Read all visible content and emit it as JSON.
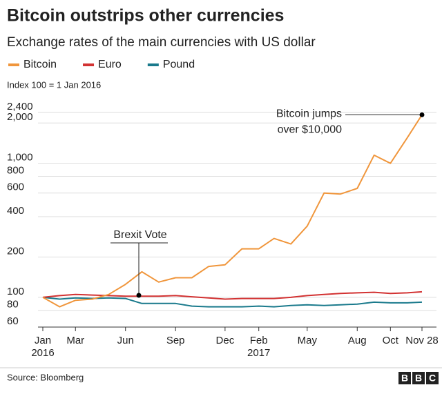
{
  "chart_data": {
    "type": "line",
    "title": "Bitcoin outstrips other currencies",
    "subtitle": "Exchange rates of the main currencies with US dollar",
    "y_label": "Index 100 = 1 Jan 2016",
    "source": "Source: Bloomberg",
    "logo": [
      "B",
      "B",
      "C"
    ],
    "log_scale": true,
    "grid": true,
    "x": [
      "2016-01",
      "2016-02",
      "2016-03",
      "2016-04",
      "2016-05",
      "2016-06",
      "2016-07",
      "2016-08",
      "2016-09",
      "2016-10",
      "2016-11",
      "2016-12",
      "2017-01",
      "2017-02",
      "2017-03",
      "2017-04",
      "2017-05",
      "2017-06",
      "2017-07",
      "2017-08",
      "2017-09",
      "2017-10",
      "2017-11",
      "2017-11-28"
    ],
    "xlim": [
      "2016-01",
      "2017-11-28"
    ],
    "xticks": [
      {
        "value": "2016-01",
        "label": "Jan",
        "label2": "2016"
      },
      {
        "value": "2016-03",
        "label": "Mar"
      },
      {
        "value": "2016-06",
        "label": "Jun"
      },
      {
        "value": "2016-09",
        "label": "Sep"
      },
      {
        "value": "2016-12",
        "label": "Dec"
      },
      {
        "value": "2017-02",
        "label": "Feb",
        "label2": "2017"
      },
      {
        "value": "2017-05",
        "label": "May"
      },
      {
        "value": "2017-08",
        "label": "Aug"
      },
      {
        "value": "2017-10",
        "label": "Oct"
      },
      {
        "value": "2017-11-28",
        "label": "Nov 28"
      }
    ],
    "ylim": [
      60,
      3000
    ],
    "yticks": [
      60,
      80,
      100,
      200,
      400,
      600,
      800,
      {
        "value": 1000,
        "label": "1,000"
      },
      {
        "value": 2000,
        "label": "2,000"
      },
      {
        "value": 2400,
        "label": "2,400"
      }
    ],
    "series": [
      {
        "name": "Bitcoin",
        "color": "#f0963c",
        "values": [
          100,
          85,
          95,
          97,
          105,
          125,
          155,
          130,
          140,
          140,
          170,
          175,
          230,
          230,
          275,
          250,
          340,
          600,
          590,
          650,
          1150,
          1000,
          1550,
          2300
        ]
      },
      {
        "name": "Euro",
        "color": "#d23232",
        "values": [
          100,
          103,
          105,
          104,
          103,
          102,
          102,
          102,
          103,
          101,
          99,
          97,
          98,
          98,
          98,
          100,
          103,
          105,
          107,
          108,
          109,
          107,
          108,
          110
        ]
      },
      {
        "name": "Pound",
        "color": "#1a7a8c",
        "values": [
          100,
          97,
          99,
          98,
          99,
          98,
          90,
          90,
          90,
          86,
          85,
          85,
          85,
          86,
          85,
          87,
          88,
          87,
          88,
          89,
          92,
          91,
          91,
          92
        ]
      }
    ],
    "annotations": [
      {
        "text": [
          "Brexit Vote"
        ]
      },
      {
        "text": [
          "Bitcoin jumps",
          "over $10,000"
        ]
      }
    ]
  }
}
